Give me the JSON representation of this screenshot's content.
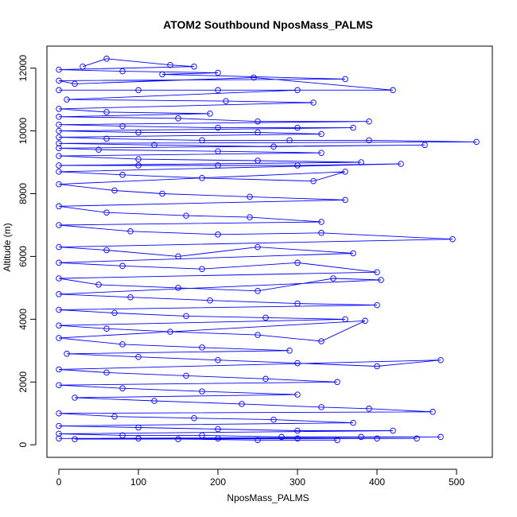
{
  "chart_data": {
    "type": "line",
    "title": "ATOM2 Southbound NposMass_PALMS",
    "xlabel": "NposMass_PALMS",
    "ylabel": "Altitude (m)",
    "xlim": [
      -15,
      545
    ],
    "ylim": [
      -400,
      12700
    ],
    "xticks": [
      0,
      100,
      200,
      300,
      400,
      500
    ],
    "yticks": [
      0,
      2000,
      4000,
      6000,
      8000,
      10000,
      12000
    ],
    "grid": false,
    "color": "#0000ff",
    "marker": "open-circle",
    "series": [
      {
        "values": [
          [
            30,
            12050
          ],
          [
            60,
            12300
          ],
          [
            140,
            12100
          ],
          [
            170,
            12050
          ],
          [
            0,
            11950
          ],
          [
            80,
            11900
          ],
          [
            200,
            11850
          ],
          [
            130,
            11800
          ],
          [
            360,
            11650
          ],
          [
            0,
            11600
          ],
          [
            20,
            11500
          ],
          [
            245,
            11700
          ],
          [
            420,
            11300
          ],
          [
            0,
            11300
          ],
          [
            100,
            11300
          ],
          [
            200,
            11300
          ],
          [
            300,
            11300
          ],
          [
            10,
            11000
          ],
          [
            210,
            10950
          ],
          [
            320,
            10900
          ],
          [
            0,
            10700
          ],
          [
            60,
            10600
          ],
          [
            190,
            10550
          ],
          [
            0,
            10450
          ],
          [
            150,
            10400
          ],
          [
            250,
            10300
          ],
          [
            390,
            10300
          ],
          [
            0,
            10200
          ],
          [
            80,
            10150
          ],
          [
            200,
            10100
          ],
          [
            300,
            10100
          ],
          [
            370,
            10100
          ],
          [
            0,
            10000
          ],
          [
            100,
            9950
          ],
          [
            250,
            9950
          ],
          [
            330,
            9900
          ],
          [
            0,
            9800
          ],
          [
            60,
            9750
          ],
          [
            180,
            9700
          ],
          [
            290,
            9700
          ],
          [
            390,
            9700
          ],
          [
            525,
            9650
          ],
          [
            0,
            9600
          ],
          [
            120,
            9550
          ],
          [
            270,
            9500
          ],
          [
            460,
            9550
          ],
          [
            0,
            9450
          ],
          [
            50,
            9400
          ],
          [
            200,
            9350
          ],
          [
            330,
            9300
          ],
          [
            0,
            9200
          ],
          [
            100,
            9100
          ],
          [
            250,
            9050
          ],
          [
            380,
            9000
          ],
          [
            0,
            8900
          ],
          [
            100,
            8900
          ],
          [
            200,
            8900
          ],
          [
            300,
            8900
          ],
          [
            430,
            8950
          ],
          [
            0,
            8700
          ],
          [
            80,
            8600
          ],
          [
            180,
            8500
          ],
          [
            320,
            8400
          ],
          [
            360,
            8700
          ],
          [
            0,
            8300
          ],
          [
            70,
            8100
          ],
          [
            130,
            8000
          ],
          [
            240,
            7900
          ],
          [
            360,
            7800
          ],
          [
            0,
            7600
          ],
          [
            60,
            7400
          ],
          [
            160,
            7300
          ],
          [
            240,
            7250
          ],
          [
            330,
            7100
          ],
          [
            0,
            7000
          ],
          [
            90,
            6800
          ],
          [
            200,
            6700
          ],
          [
            330,
            6750
          ],
          [
            495,
            6550
          ],
          [
            0,
            6300
          ],
          [
            60,
            6200
          ],
          [
            150,
            6000
          ],
          [
            250,
            6300
          ],
          [
            370,
            6100
          ],
          [
            0,
            5800
          ],
          [
            80,
            5700
          ],
          [
            180,
            5600
          ],
          [
            300,
            5800
          ],
          [
            400,
            5500
          ],
          [
            0,
            5300
          ],
          [
            50,
            5100
          ],
          [
            150,
            5000
          ],
          [
            250,
            4900
          ],
          [
            345,
            5300
          ],
          [
            405,
            5250
          ],
          [
            0,
            4800
          ],
          [
            90,
            4700
          ],
          [
            190,
            4600
          ],
          [
            300,
            4500
          ],
          [
            400,
            4450
          ],
          [
            0,
            4300
          ],
          [
            70,
            4200
          ],
          [
            160,
            4100
          ],
          [
            260,
            4050
          ],
          [
            360,
            4000
          ],
          [
            0,
            3800
          ],
          [
            60,
            3700
          ],
          [
            140,
            3600
          ],
          [
            250,
            3500
          ],
          [
            330,
            3300
          ],
          [
            385,
            3950
          ],
          [
            0,
            3400
          ],
          [
            80,
            3200
          ],
          [
            180,
            3100
          ],
          [
            290,
            3000
          ],
          [
            10,
            2900
          ],
          [
            100,
            2800
          ],
          [
            200,
            2700
          ],
          [
            300,
            2600
          ],
          [
            400,
            2500
          ],
          [
            480,
            2700
          ],
          [
            0,
            2400
          ],
          [
            60,
            2300
          ],
          [
            160,
            2200
          ],
          [
            260,
            2100
          ],
          [
            350,
            2000
          ],
          [
            0,
            1900
          ],
          [
            80,
            1800
          ],
          [
            180,
            1700
          ],
          [
            300,
            1600
          ],
          [
            20,
            1500
          ],
          [
            120,
            1400
          ],
          [
            230,
            1300
          ],
          [
            330,
            1200
          ],
          [
            390,
            1150
          ],
          [
            470,
            1050
          ],
          [
            0,
            1000
          ],
          [
            70,
            900
          ],
          [
            170,
            850
          ],
          [
            270,
            800
          ],
          [
            370,
            700
          ],
          [
            0,
            600
          ],
          [
            100,
            550
          ],
          [
            200,
            500
          ],
          [
            300,
            450
          ],
          [
            420,
            450
          ],
          [
            0,
            350
          ],
          [
            80,
            300
          ],
          [
            180,
            300
          ],
          [
            280,
            250
          ],
          [
            380,
            250
          ],
          [
            480,
            250
          ],
          [
            0,
            200
          ],
          [
            100,
            200
          ],
          [
            200,
            200
          ],
          [
            300,
            200
          ],
          [
            400,
            200
          ],
          [
            450,
            200
          ],
          [
            20,
            180
          ],
          [
            150,
            180
          ],
          [
            250,
            150
          ],
          [
            350,
            150
          ]
        ]
      }
    ]
  }
}
